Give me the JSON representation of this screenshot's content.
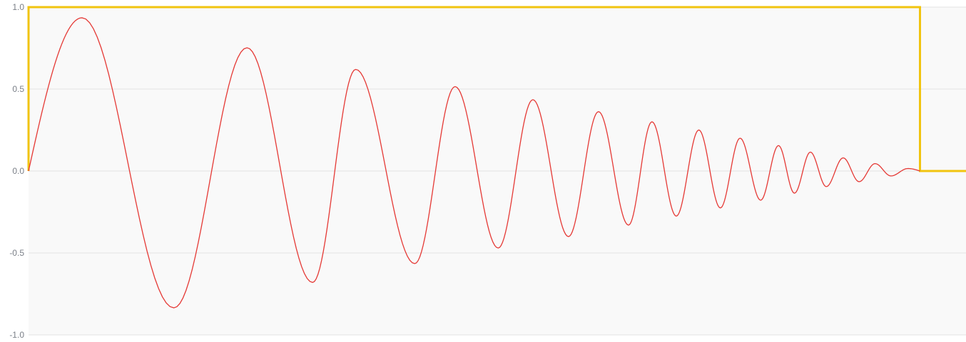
{
  "chart_data": {
    "type": "line",
    "title": "",
    "xlabel": "",
    "ylabel": "",
    "ylim": [
      -1.0,
      1.0
    ],
    "xlim": [
      0,
      1.0
    ],
    "yticks": [
      {
        "value": 1.0,
        "label": "1.0"
      },
      {
        "value": 0.5,
        "label": "0.5"
      },
      {
        "value": 0.0,
        "label": "0.0"
      },
      {
        "value": -0.5,
        "label": "-0.5"
      },
      {
        "value": -1.0,
        "label": "-1.0"
      }
    ],
    "grid": true,
    "colors": {
      "plot_background": "#f9f9f9",
      "gridline": "#e3e3e3",
      "envelope_line": "#f1c40f",
      "signal_line": "#e53935"
    },
    "series": [
      {
        "type": "step",
        "points": [
          [
            0,
            0
          ],
          [
            0,
            1.0
          ],
          [
            0.9509,
            1.0
          ],
          [
            0.9509,
            0
          ],
          [
            1.0,
            0
          ]
        ]
      },
      {
        "type": "line",
        "points": [
          [
            0.0,
            0.0
          ],
          [
            0.057,
            0.935
          ],
          [
            0.155,
            -0.835
          ],
          [
            0.233,
            0.752
          ],
          [
            0.303,
            -0.68
          ],
          [
            0.349,
            0.62
          ],
          [
            0.412,
            -0.565
          ],
          [
            0.455,
            0.515
          ],
          [
            0.501,
            -0.47
          ],
          [
            0.538,
            0.435
          ],
          [
            0.576,
            -0.4
          ],
          [
            0.608,
            0.362
          ],
          [
            0.64,
            -0.33
          ],
          [
            0.665,
            0.3
          ],
          [
            0.691,
            -0.275
          ],
          [
            0.715,
            0.25
          ],
          [
            0.738,
            -0.225
          ],
          [
            0.759,
            0.2
          ],
          [
            0.781,
            -0.178
          ],
          [
            0.8,
            0.155
          ],
          [
            0.817,
            -0.135
          ],
          [
            0.834,
            0.115
          ],
          [
            0.851,
            -0.095
          ],
          [
            0.869,
            0.08
          ],
          [
            0.886,
            -0.065
          ],
          [
            0.903,
            0.045
          ],
          [
            0.92,
            -0.03
          ],
          [
            0.938,
            0.015
          ],
          [
            0.9509,
            0.0
          ]
        ]
      }
    ]
  }
}
